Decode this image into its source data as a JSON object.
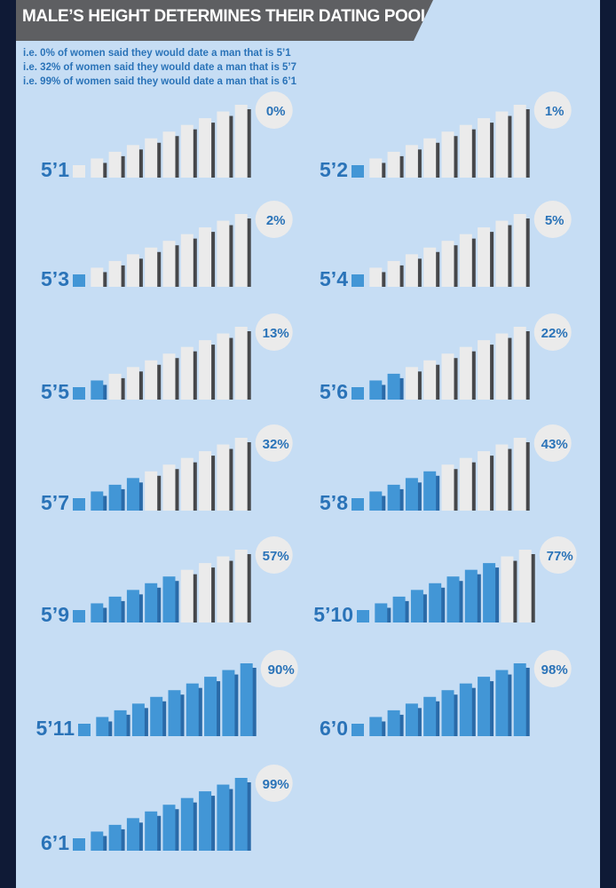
{
  "title": "MALE’S HEIGHT DETERMINES THEIR DATING POOL",
  "subtitles": [
    "i.e. 0% of women said they would date a man that is 5’1",
    "i.e. 32% of women said they would date a man that is 5’7",
    "i.e. 99% of women said they would date a man that is 6’1"
  ],
  "colors": {
    "background": "#c6ddf4",
    "page_border": "#0f1a36",
    "title_bar": "#5e5f62",
    "filled_bar": "#4296d6",
    "filled_shadow": "#2a6aa8",
    "empty_bar": "#ebebeb",
    "empty_shadow": "#46474a",
    "text_blue": "#2a73b8"
  },
  "chart_data": {
    "type": "bar",
    "bars_per_panel": 10,
    "panels": [
      {
        "height": "5’1",
        "percent": 0,
        "percent_label": "0%",
        "filled_bars": 0
      },
      {
        "height": "5’2",
        "percent": 1,
        "percent_label": "1%",
        "filled_bars": 1
      },
      {
        "height": "5’3",
        "percent": 2,
        "percent_label": "2%",
        "filled_bars": 1
      },
      {
        "height": "5’4",
        "percent": 5,
        "percent_label": "5%",
        "filled_bars": 1
      },
      {
        "height": "5’5",
        "percent": 13,
        "percent_label": "13%",
        "filled_bars": 2
      },
      {
        "height": "5’6",
        "percent": 22,
        "percent_label": "22%",
        "filled_bars": 3
      },
      {
        "height": "5’7",
        "percent": 32,
        "percent_label": "32%",
        "filled_bars": 4
      },
      {
        "height": "5’8",
        "percent": 43,
        "percent_label": "43%",
        "filled_bars": 5
      },
      {
        "height": "5’9",
        "percent": 57,
        "percent_label": "57%",
        "filled_bars": 6
      },
      {
        "height": "5’10",
        "percent": 77,
        "percent_label": "77%",
        "filled_bars": 8
      },
      {
        "height": "5’11",
        "percent": 90,
        "percent_label": "90%",
        "filled_bars": 10
      },
      {
        "height": "6’0",
        "percent": 98,
        "percent_label": "98%",
        "filled_bars": 10
      },
      {
        "height": "6’1",
        "percent": 99,
        "percent_label": "99%",
        "filled_bars": 10
      }
    ]
  }
}
